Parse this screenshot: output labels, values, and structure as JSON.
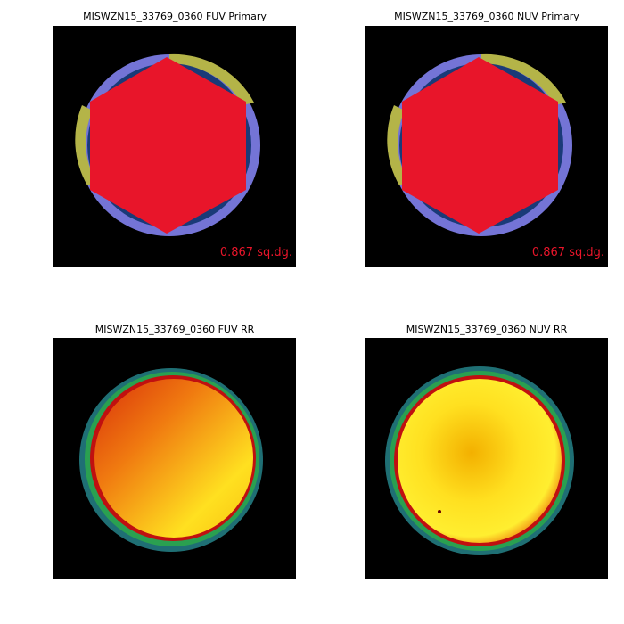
{
  "panels": [
    {
      "title": "MISWZN15_33769_0360 FUV Primary",
      "area_label": "0.867 sq.dg."
    },
    {
      "title": "MISWZN15_33769_0360 NUV Primary",
      "area_label": "0.867 sq.dg."
    },
    {
      "title": "MISWZN15_33769_0360 FUV RR"
    },
    {
      "title": "MISWZN15_33769_0360 NUV RR"
    }
  ]
}
